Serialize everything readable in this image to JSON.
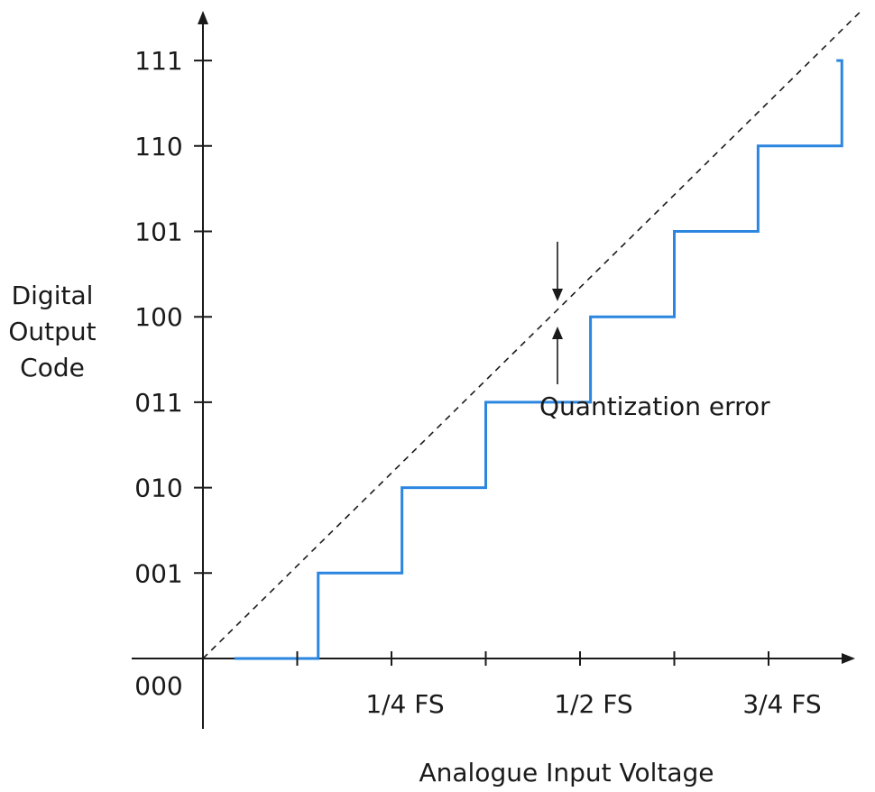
{
  "chart_data": {
    "type": "line",
    "title": "",
    "xlabel": "Analogue Input Voltage",
    "ylabel": [
      "Digital",
      "Output",
      "Code"
    ],
    "x_tick_labels": [
      {
        "x": 0.125,
        "label": ""
      },
      {
        "x": 0.25,
        "label": "1/4 FS"
      },
      {
        "x": 0.375,
        "label": ""
      },
      {
        "x": 0.5,
        "label": "1/2 FS"
      },
      {
        "x": 0.625,
        "label": ""
      },
      {
        "x": 0.75,
        "label": "3/4 FS"
      }
    ],
    "y_categories": [
      "000",
      "001",
      "010",
      "011",
      "100",
      "101",
      "110",
      "111"
    ],
    "xlim": [
      0,
      0.875
    ],
    "ylim": [
      0,
      7
    ],
    "grid": false,
    "series": [
      {
        "step_edges": [
          0.0417,
          0.1528,
          0.2639,
          0.375,
          0.5139,
          0.625,
          0.7361,
          0.8472
        ],
        "codes": [
          0,
          1,
          2,
          3,
          4,
          5,
          6,
          7
        ],
        "style": "step",
        "color": "#2b86e0"
      },
      {
        "x": [
          0,
          0.875
        ],
        "y": [
          0,
          7.6
        ],
        "style": "dashed",
        "color": "#1a1a1a"
      }
    ],
    "annotations": [
      {
        "text": "Quantization error",
        "x": 0.5,
        "y": 4
      }
    ]
  }
}
